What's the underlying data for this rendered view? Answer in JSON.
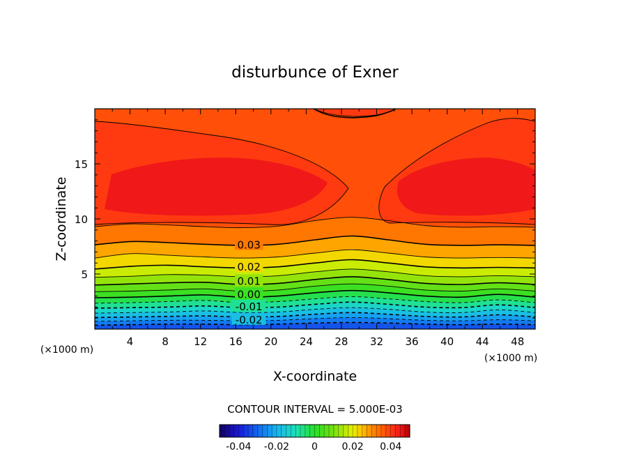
{
  "chart_data": {
    "type": "contour",
    "title": "disturbunce of Exner",
    "xlabel": "X-coordinate",
    "ylabel": "Z-coordinate",
    "x_unit_label": "(×1000 m)",
    "z_unit_label": "(×1000 m)",
    "xlim": [
      0,
      50
    ],
    "ylim": [
      0,
      20
    ],
    "x_ticks": [
      4,
      8,
      12,
      16,
      20,
      24,
      28,
      32,
      36,
      40,
      44,
      48
    ],
    "y_ticks": [
      5,
      10,
      15
    ],
    "contour_interval_label": "CONTOUR INTERVAL = 5.000E-03",
    "contour_interval": 0.005,
    "contour_labels": [
      {
        "text": "0.03",
        "x": 17.5,
        "z": 7.7
      },
      {
        "text": "0.02",
        "x": 17.5,
        "z": 5.7
      },
      {
        "text": "0.01",
        "x": 17.5,
        "z": 4.4
      },
      {
        "text": "0.00",
        "x": 17.5,
        "z": 3.2
      },
      {
        "text": "-0.01",
        "x": 17.5,
        "z": 2.1
      },
      {
        "text": "-0.02",
        "x": 17.5,
        "z": 0.9
      }
    ],
    "levels": [
      {
        "value": -0.03,
        "dashed": true,
        "z": [
          0.35,
          0.4,
          0.45,
          0.45,
          0.4,
          0.45,
          0.55,
          0.6,
          0.55,
          0.45,
          0.4,
          0.45,
          0.4
        ]
      },
      {
        "value": -0.025,
        "dashed": true,
        "z": [
          0.7,
          0.75,
          0.8,
          0.8,
          0.75,
          0.8,
          0.95,
          1.05,
          0.95,
          0.8,
          0.75,
          0.85,
          0.75
        ]
      },
      {
        "value": -0.02,
        "dashed": true,
        "z": [
          1.05,
          1.1,
          1.15,
          1.2,
          1.1,
          1.15,
          1.35,
          1.5,
          1.35,
          1.15,
          1.1,
          1.3,
          1.1
        ]
      },
      {
        "value": -0.015,
        "dashed": true,
        "z": [
          1.45,
          1.5,
          1.55,
          1.65,
          1.5,
          1.55,
          1.8,
          1.95,
          1.8,
          1.55,
          1.5,
          1.75,
          1.5
        ]
      },
      {
        "value": -0.01,
        "dashed": true,
        "z": [
          1.9,
          1.95,
          2.0,
          2.1,
          1.95,
          2.0,
          2.25,
          2.45,
          2.25,
          2.0,
          1.95,
          2.2,
          1.95
        ]
      },
      {
        "value": -0.005,
        "dashed": true,
        "z": [
          2.35,
          2.4,
          2.5,
          2.6,
          2.4,
          2.5,
          2.75,
          2.95,
          2.75,
          2.5,
          2.4,
          2.65,
          2.4
        ]
      },
      {
        "value": 0.0,
        "dashed": false,
        "z": [
          2.85,
          2.9,
          3.0,
          3.1,
          2.9,
          3.0,
          3.3,
          3.5,
          3.3,
          3.0,
          2.9,
          3.15,
          2.9
        ]
      },
      {
        "value": 0.005,
        "dashed": false,
        "z": [
          3.4,
          3.45,
          3.55,
          3.65,
          3.45,
          3.55,
          3.9,
          4.1,
          3.9,
          3.55,
          3.45,
          3.65,
          3.45
        ]
      },
      {
        "value": 0.01,
        "dashed": false,
        "z": [
          4.0,
          4.1,
          4.2,
          4.25,
          4.05,
          4.15,
          4.5,
          4.75,
          4.5,
          4.15,
          4.05,
          4.2,
          4.05
        ]
      },
      {
        "value": 0.015,
        "dashed": false,
        "z": [
          4.7,
          4.8,
          4.95,
          4.9,
          4.75,
          4.85,
          5.2,
          5.45,
          5.2,
          4.85,
          4.75,
          4.85,
          4.75
        ]
      },
      {
        "value": 0.02,
        "dashed": false,
        "z": [
          5.45,
          5.7,
          5.8,
          5.65,
          5.55,
          5.65,
          6.0,
          6.3,
          6.0,
          5.65,
          5.55,
          5.6,
          5.55
        ]
      },
      {
        "value": 0.025,
        "dashed": false,
        "z": [
          6.45,
          6.85,
          6.7,
          6.55,
          6.45,
          6.55,
          6.9,
          7.2,
          6.9,
          6.55,
          6.45,
          6.5,
          6.45
        ]
      },
      {
        "value": 0.03,
        "dashed": false,
        "z": [
          7.65,
          7.95,
          7.85,
          7.7,
          7.6,
          7.7,
          8.1,
          8.45,
          8.1,
          7.7,
          7.6,
          7.65,
          7.6
        ]
      },
      {
        "value": 0.035,
        "dashed": false,
        "z": [
          9.3,
          9.55,
          9.45,
          9.3,
          9.2,
          9.35,
          9.85,
          10.15,
          9.85,
          9.4,
          9.25,
          9.3,
          9.25
        ]
      }
    ],
    "colorbar": {
      "ticks": [
        "-0.04",
        "-0.02",
        "0",
        "0.02",
        "0.04"
      ],
      "range": [
        -0.05,
        0.05
      ]
    },
    "colormap_stops": [
      {
        "value": -0.05,
        "color": "#100060"
      },
      {
        "value": -0.04,
        "color": "#1a1ad8"
      },
      {
        "value": -0.03,
        "color": "#1068f0"
      },
      {
        "value": -0.02,
        "color": "#18b4f0"
      },
      {
        "value": -0.01,
        "color": "#1ce0b8"
      },
      {
        "value": 0.0,
        "color": "#28e028"
      },
      {
        "value": 0.01,
        "color": "#78e010"
      },
      {
        "value": 0.02,
        "color": "#e6f000"
      },
      {
        "value": 0.025,
        "color": "#ffc000"
      },
      {
        "value": 0.03,
        "color": "#ff8a00"
      },
      {
        "value": 0.035,
        "color": "#ff6400"
      },
      {
        "value": 0.04,
        "color": "#ff3a10"
      },
      {
        "value": 0.045,
        "color": "#f01818"
      },
      {
        "value": 0.05,
        "color": "#b00000"
      }
    ]
  }
}
